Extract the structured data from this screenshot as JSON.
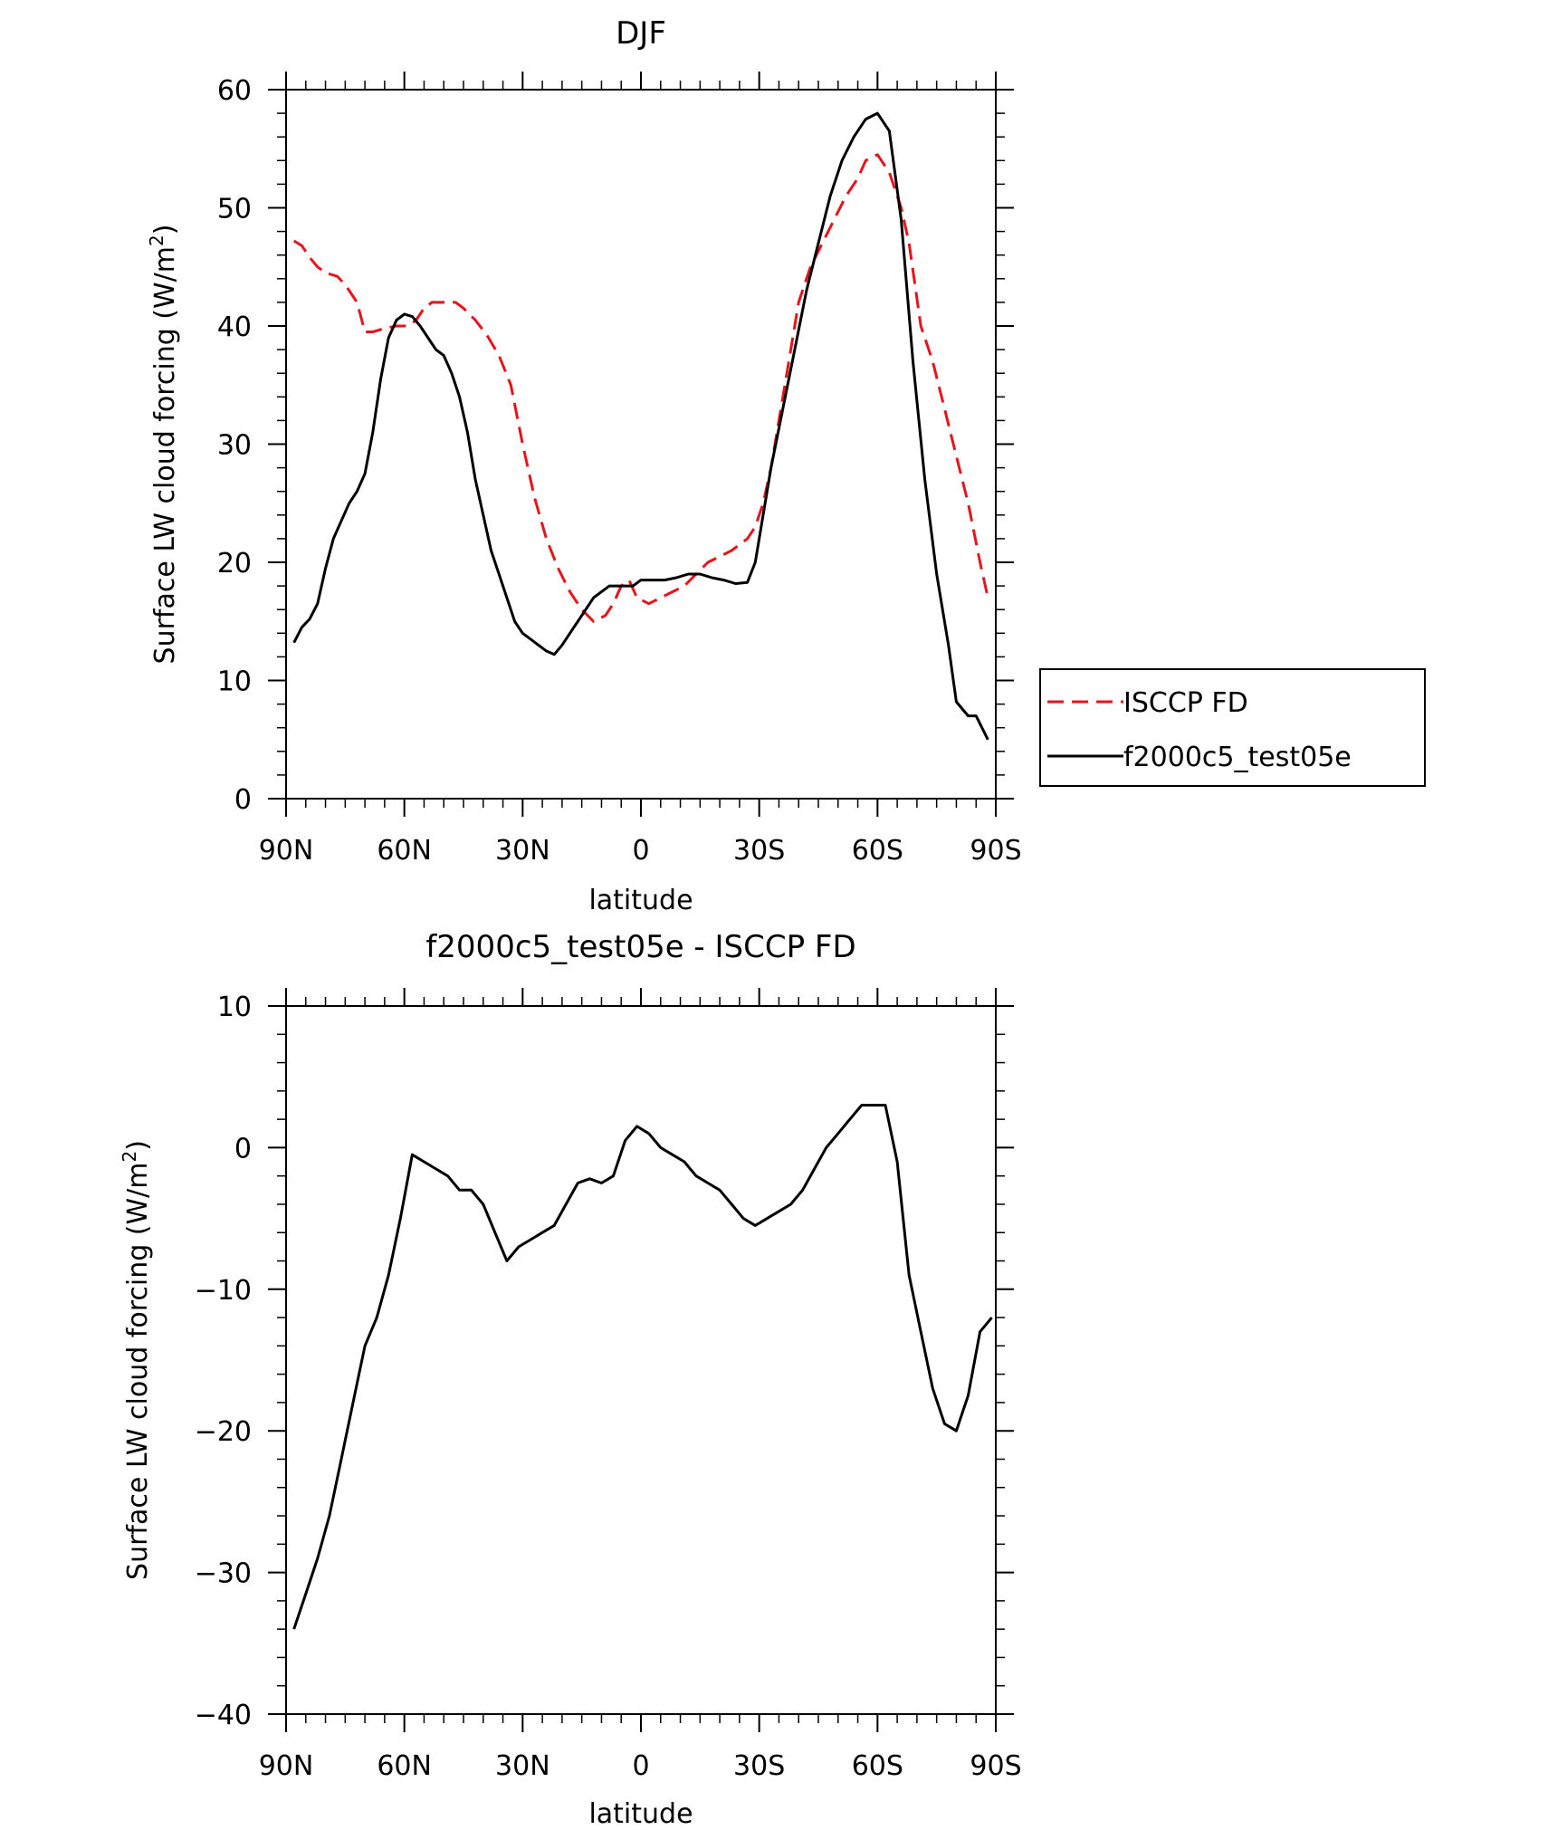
{
  "chart_data": [
    {
      "type": "line",
      "title": "DJF",
      "xlabel": "latitude",
      "ylabel": "Surface LW cloud forcing (W/m",
      "ylabel_sup": "2",
      "ylabel_close": ")",
      "xlim": [
        90,
        -90
      ],
      "ylim": [
        0,
        60
      ],
      "x_ticks": [
        90,
        60,
        30,
        0,
        -30,
        -60,
        -90
      ],
      "x_tick_labels": [
        "90N",
        "60N",
        "30N",
        "0",
        "30S",
        "60S",
        "90S"
      ],
      "y_ticks": [
        0,
        10,
        20,
        30,
        40,
        50,
        60
      ],
      "y_tick_labels": [
        "0",
        "10",
        "20",
        "30",
        "40",
        "50",
        "60"
      ],
      "legend_position": "right",
      "series": [
        {
          "name": "ISCCP FD",
          "color": "#e8131b",
          "dash": "dashed",
          "points": [
            [
              88,
              47.2
            ],
            [
              86,
              46.8
            ],
            [
              84,
              45.8
            ],
            [
              82,
              45
            ],
            [
              80,
              44.5
            ],
            [
              77,
              44.2
            ],
            [
              75,
              43.5
            ],
            [
              72,
              42
            ],
            [
              70,
              39.5
            ],
            [
              68,
              39.5
            ],
            [
              65,
              39.8
            ],
            [
              62,
              40
            ],
            [
              59,
              40
            ],
            [
              57,
              40.5
            ],
            [
              55,
              41.5
            ],
            [
              53,
              42
            ],
            [
              50,
              42
            ],
            [
              47,
              42
            ],
            [
              45,
              41.5
            ],
            [
              42,
              40.5
            ],
            [
              39,
              39.2
            ],
            [
              36,
              37.5
            ],
            [
              33,
              35
            ],
            [
              30,
              30
            ],
            [
              27,
              25.5
            ],
            [
              24,
              22
            ],
            [
              21,
              19.5
            ],
            [
              18,
              17.5
            ],
            [
              15,
              16
            ],
            [
              12,
              15
            ],
            [
              9,
              15.5
            ],
            [
              7,
              16.5
            ],
            [
              5,
              18
            ],
            [
              3,
              18.5
            ],
            [
              1,
              17
            ],
            [
              -2,
              16.5
            ],
            [
              -5,
              17
            ],
            [
              -8,
              17.5
            ],
            [
              -11,
              18
            ],
            [
              -14,
              19
            ],
            [
              -17,
              20
            ],
            [
              -20,
              20.5
            ],
            [
              -23,
              21
            ],
            [
              -27,
              22
            ],
            [
              -29,
              23
            ],
            [
              -31,
              25
            ],
            [
              -33,
              28
            ],
            [
              -35,
              32
            ],
            [
              -37,
              36
            ],
            [
              -40,
              42
            ],
            [
              -43,
              45
            ],
            [
              -46,
              47
            ],
            [
              -49,
              49
            ],
            [
              -52,
              51
            ],
            [
              -55,
              52.5
            ],
            [
              -57,
              54
            ],
            [
              -60,
              54.5
            ],
            [
              -63,
              53
            ],
            [
              -66,
              50
            ],
            [
              -68,
              47
            ],
            [
              -71,
              40
            ],
            [
              -74,
              37
            ],
            [
              -77,
              33
            ],
            [
              -80,
              29
            ],
            [
              -83,
              25
            ],
            [
              -86,
              20
            ],
            [
              -88,
              17
            ]
          ]
        },
        {
          "name": "f2000c5_test05e",
          "color": "#000000",
          "dash": "solid",
          "points": [
            [
              88,
              13.2
            ],
            [
              86,
              14.5
            ],
            [
              84,
              15.2
            ],
            [
              82,
              16.5
            ],
            [
              80,
              19.5
            ],
            [
              78,
              22
            ],
            [
              76,
              23.5
            ],
            [
              74,
              25
            ],
            [
              72,
              26
            ],
            [
              70,
              27.5
            ],
            [
              68,
              31
            ],
            [
              66,
              35.5
            ],
            [
              64,
              39
            ],
            [
              62,
              40.5
            ],
            [
              60,
              41
            ],
            [
              58,
              40.8
            ],
            [
              56,
              40
            ],
            [
              54,
              39
            ],
            [
              52,
              38
            ],
            [
              50,
              37.5
            ],
            [
              48,
              36
            ],
            [
              46,
              34
            ],
            [
              44,
              31
            ],
            [
              42,
              27
            ],
            [
              40,
              24
            ],
            [
              38,
              21
            ],
            [
              36,
              19
            ],
            [
              34,
              17
            ],
            [
              32,
              15
            ],
            [
              30,
              14
            ],
            [
              28,
              13.5
            ],
            [
              26,
              13
            ],
            [
              24,
              12.5
            ],
            [
              22,
              12.2
            ],
            [
              20,
              13
            ],
            [
              18,
              14
            ],
            [
              16,
              15
            ],
            [
              14,
              16
            ],
            [
              12,
              17
            ],
            [
              10,
              17.5
            ],
            [
              8,
              18
            ],
            [
              6,
              18
            ],
            [
              4,
              18
            ],
            [
              2,
              18
            ],
            [
              0,
              18.5
            ],
            [
              -3,
              18.5
            ],
            [
              -6,
              18.5
            ],
            [
              -9,
              18.7
            ],
            [
              -12,
              19
            ],
            [
              -15,
              19
            ],
            [
              -18,
              18.7
            ],
            [
              -21,
              18.5
            ],
            [
              -24,
              18.2
            ],
            [
              -27,
              18.3
            ],
            [
              -29,
              20
            ],
            [
              -31,
              24
            ],
            [
              -33,
              28
            ],
            [
              -36,
              33
            ],
            [
              -39,
              38
            ],
            [
              -42,
              43
            ],
            [
              -45,
              47
            ],
            [
              -48,
              51
            ],
            [
              -51,
              54
            ],
            [
              -54,
              56
            ],
            [
              -57,
              57.5
            ],
            [
              -60,
              58
            ],
            [
              -63,
              56.5
            ],
            [
              -66,
              49
            ],
            [
              -69,
              37
            ],
            [
              -72,
              27
            ],
            [
              -75,
              19
            ],
            [
              -78,
              13
            ],
            [
              -80,
              8.2
            ],
            [
              -83,
              7
            ],
            [
              -85,
              7
            ],
            [
              -88,
              5
            ]
          ]
        }
      ]
    },
    {
      "type": "line",
      "title": "f2000c5_test05e - ISCCP FD",
      "xlabel": "latitude",
      "ylabel": "Surface LW cloud forcing (W/m",
      "ylabel_sup": "2",
      "ylabel_close": ")",
      "xlim": [
        90,
        -90
      ],
      "ylim": [
        -40,
        10
      ],
      "x_ticks": [
        90,
        60,
        30,
        0,
        -30,
        -60,
        -90
      ],
      "x_tick_labels": [
        "90N",
        "60N",
        "30N",
        "0",
        "30S",
        "60S",
        "90S"
      ],
      "y_ticks": [
        -40,
        -30,
        -20,
        -10,
        0,
        10
      ],
      "y_tick_labels": [
        "−40",
        "−30",
        "−20",
        "−10",
        "0",
        "10"
      ],
      "series": [
        {
          "color": "#000000",
          "dash": "solid",
          "points": [
            [
              88,
              -34
            ],
            [
              85,
              -31.5
            ],
            [
              82,
              -29
            ],
            [
              79,
              -26
            ],
            [
              76,
              -22
            ],
            [
              73,
              -18
            ],
            [
              70,
              -14
            ],
            [
              67,
              -12
            ],
            [
              64,
              -9
            ],
            [
              61,
              -5
            ],
            [
              58,
              -0.5
            ],
            [
              55,
              -1
            ],
            [
              52,
              -1.5
            ],
            [
              49,
              -2
            ],
            [
              46,
              -3
            ],
            [
              43,
              -3
            ],
            [
              40,
              -4
            ],
            [
              37,
              -6
            ],
            [
              34,
              -8
            ],
            [
              31,
              -7
            ],
            [
              28,
              -6.5
            ],
            [
              25,
              -6
            ],
            [
              22,
              -5.5
            ],
            [
              19,
              -4
            ],
            [
              16,
              -2.5
            ],
            [
              13,
              -2.2
            ],
            [
              10,
              -2.5
            ],
            [
              7,
              -2
            ],
            [
              4,
              0.5
            ],
            [
              1,
              1.5
            ],
            [
              -2,
              1
            ],
            [
              -5,
              0
            ],
            [
              -8,
              -0.5
            ],
            [
              -11,
              -1
            ],
            [
              -14,
              -2
            ],
            [
              -17,
              -2.5
            ],
            [
              -20,
              -3
            ],
            [
              -23,
              -4
            ],
            [
              -26,
              -5
            ],
            [
              -29,
              -5.5
            ],
            [
              -32,
              -5
            ],
            [
              -35,
              -4.5
            ],
            [
              -38,
              -4
            ],
            [
              -41,
              -3
            ],
            [
              -44,
              -1.5
            ],
            [
              -47,
              0
            ],
            [
              -50,
              1
            ],
            [
              -53,
              2
            ],
            [
              -56,
              3
            ],
            [
              -59,
              3
            ],
            [
              -62,
              3
            ],
            [
              -65,
              -1
            ],
            [
              -68,
              -9
            ],
            [
              -71,
              -13
            ],
            [
              -74,
              -17
            ],
            [
              -77,
              -19.5
            ],
            [
              -80,
              -20
            ],
            [
              -83,
              -17.5
            ],
            [
              -86,
              -13
            ],
            [
              -89,
              -12
            ]
          ]
        }
      ]
    }
  ]
}
